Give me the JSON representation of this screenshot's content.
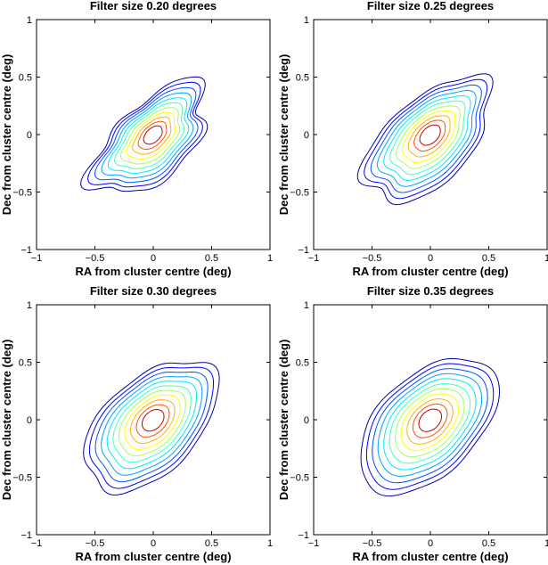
{
  "chart_data": [
    {
      "type": "contour",
      "title": "Filter size 0.20 degrees",
      "xlabel": "RA from cluster centre (deg)",
      "ylabel": "Dec from cluster centre (deg)",
      "xlim": [
        -1,
        1
      ],
      "ylim": [
        -1,
        1
      ],
      "xticks": [
        "−1",
        "−0.5",
        "0",
        "0.5",
        "1"
      ],
      "yticks": [
        "−1",
        "−0.5",
        "0",
        "0.5",
        "1"
      ],
      "peak": [
        0.0,
        0.0
      ],
      "position_angle_deg": 45,
      "spread_major": 0.55,
      "spread_minor": 0.28,
      "irregularity": 0.22,
      "levels": 11
    },
    {
      "type": "contour",
      "title": "Filter size 0.25 degrees",
      "xlabel": "RA from cluster centre (deg)",
      "ylabel": "Dec from cluster centre (deg)",
      "xlim": [
        -1,
        1
      ],
      "ylim": [
        -1,
        1
      ],
      "xticks": [
        "−1",
        "−0.5",
        "0",
        "0.5",
        "1"
      ],
      "yticks": [
        "−1",
        "−0.5",
        "0",
        "0.5",
        "1"
      ],
      "peak": [
        0.0,
        0.0
      ],
      "position_angle_deg": 45,
      "spread_major": 0.6,
      "spread_minor": 0.32,
      "irregularity": 0.14,
      "levels": 11
    },
    {
      "type": "contour",
      "title": "Filter size 0.30 degrees",
      "xlabel": "RA from cluster centre (deg)",
      "ylabel": "Dec from cluster centre (deg)",
      "xlim": [
        -1,
        1
      ],
      "ylim": [
        -1,
        1
      ],
      "xticks": [
        "−1",
        "−0.5",
        "0",
        "0.5",
        "1"
      ],
      "yticks": [
        "−1",
        "−0.5",
        "0",
        "0.5",
        "1"
      ],
      "peak": [
        0.0,
        0.0
      ],
      "position_angle_deg": 45,
      "spread_major": 0.62,
      "spread_minor": 0.36,
      "irregularity": 0.08,
      "levels": 11
    },
    {
      "type": "contour",
      "title": "Filter size 0.35 degrees",
      "xlabel": "RA from cluster centre (deg)",
      "ylabel": "Dec from cluster centre (deg)",
      "xlim": [
        -1,
        1
      ],
      "ylim": [
        -1,
        1
      ],
      "xticks": [
        "−1",
        "−0.5",
        "0",
        "0.5",
        "1"
      ],
      "yticks": [
        "−1",
        "−0.5",
        "0",
        "0.5",
        "1"
      ],
      "peak": [
        0.0,
        0.0
      ],
      "position_angle_deg": 45,
      "spread_major": 0.64,
      "spread_minor": 0.38,
      "irregularity": 0.05,
      "levels": 11
    }
  ],
  "contour_colors": [
    "#0000a8",
    "#0000ff",
    "#0050ff",
    "#00a0ff",
    "#00e8ff",
    "#40ffbf",
    "#a0ff60",
    "#ffff00",
    "#ffb000",
    "#ff5000",
    "#c00000"
  ]
}
